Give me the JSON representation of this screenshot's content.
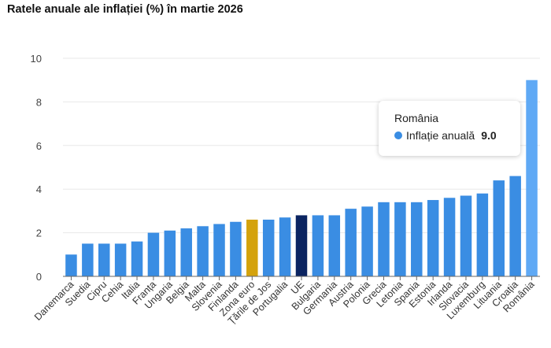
{
  "chart_data": {
    "type": "bar",
    "title": "Ratele anuale ale inflației (%) în martie 2026",
    "categories": [
      "Danemarca",
      "Suedia",
      "Cipru",
      "Cehia",
      "Italia",
      "Franța",
      "Ungaria",
      "Belgia",
      "Malta",
      "Slovenia",
      "Finlanda",
      "Zona euro",
      "Țările de Jos",
      "Portugalia",
      "UE",
      "Bulgaria",
      "Germania",
      "Austria",
      "Polonia",
      "Grecia",
      "Letonia",
      "Spania",
      "Estonia",
      "Irlanda",
      "Slovacia",
      "Luxemburg",
      "Lituania",
      "Croația",
      "România"
    ],
    "series": [
      {
        "name": "Inflație anuală",
        "values": [
          1.0,
          1.5,
          1.5,
          1.5,
          1.6,
          2.0,
          2.1,
          2.2,
          2.3,
          2.4,
          2.5,
          2.6,
          2.6,
          2.7,
          2.8,
          2.8,
          2.8,
          3.1,
          3.2,
          3.4,
          3.4,
          3.4,
          3.5,
          3.6,
          3.7,
          3.8,
          4.4,
          4.6,
          9.0
        ]
      }
    ],
    "ylim": [
      0,
      10
    ],
    "yticks": [
      0,
      2,
      4,
      6,
      8,
      10
    ],
    "grid": true,
    "colors": {
      "default": "#3a8de3",
      "euro_area": "#d4a20c",
      "eu": "#0b2461",
      "highlighted": "#5fa9f5",
      "grid": "#e8e8e8",
      "axis": "#666666"
    },
    "special_bars": {
      "Zona euro": "euro_area",
      "UE": "eu",
      "România": "highlighted"
    },
    "tooltip": {
      "title": "România",
      "series_label": "Inflație anuală",
      "value": "9.0"
    }
  }
}
